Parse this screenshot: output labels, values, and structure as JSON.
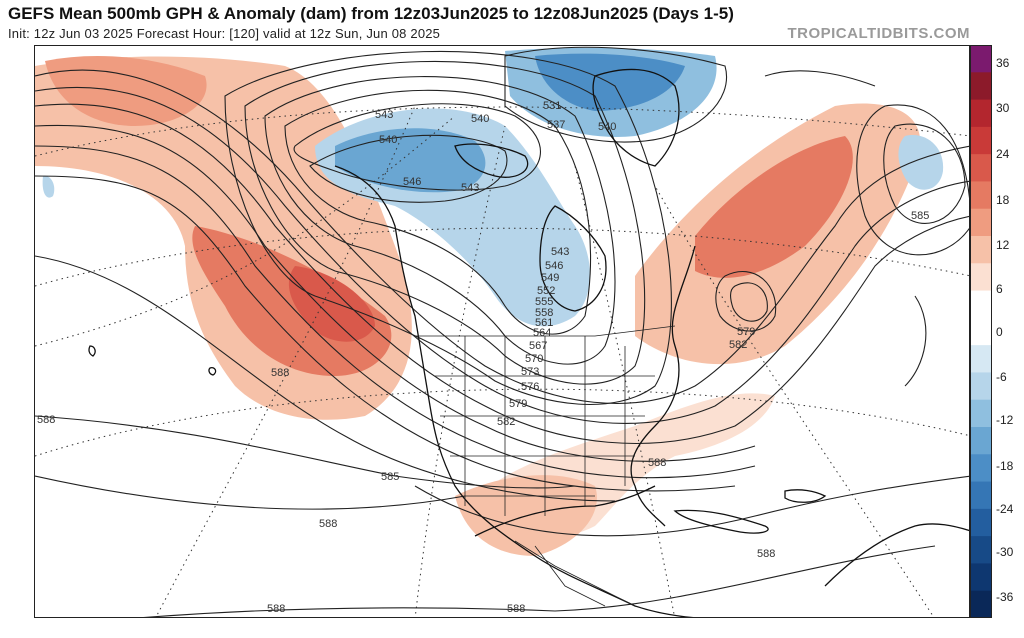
{
  "header": {
    "title": "GEFS Mean 500mb GPH & Anomaly (dam) from 12z03Jun2025 to 12z08Jun2025 (Days 1-5)",
    "subtitle": "Init: 12z Jun 03 2025   Forecast Hour: [120]   valid at 12z Sun, Jun 08 2025",
    "credit": "TROPICALTIDBITS.COM"
  },
  "colorbar": {
    "ticks": [
      "36",
      "30",
      "24",
      "18",
      "12",
      "6",
      "0",
      "-6",
      "-12",
      "-18",
      "-24",
      "-30",
      "-36"
    ],
    "colors": [
      "#7b1a6e",
      "#8c1a2a",
      "#b3262e",
      "#c93a38",
      "#d9594b",
      "#e57a62",
      "#ef9c80",
      "#f6c1a8",
      "#fbe0d2",
      "#ffffff",
      "#ffffff",
      "#d6e8f3",
      "#b6d5ea",
      "#8fbfdf",
      "#6aa6d2",
      "#4c8ec6",
      "#3576b5",
      "#235e9f",
      "#174a87",
      "#0e3770",
      "#0a2858"
    ]
  },
  "contours": {
    "labels": [
      {
        "text": "543"
      },
      {
        "text": "540"
      },
      {
        "text": "540"
      },
      {
        "text": "531"
      },
      {
        "text": "537"
      },
      {
        "text": "540"
      },
      {
        "text": "546"
      },
      {
        "text": "543"
      },
      {
        "text": "543"
      },
      {
        "text": "546"
      },
      {
        "text": "549"
      },
      {
        "text": "552"
      },
      {
        "text": "555"
      },
      {
        "text": "558"
      },
      {
        "text": "561"
      },
      {
        "text": "564"
      },
      {
        "text": "567"
      },
      {
        "text": "570"
      },
      {
        "text": "573"
      },
      {
        "text": "576"
      },
      {
        "text": "579"
      },
      {
        "text": "582"
      },
      {
        "text": "585"
      },
      {
        "text": "588"
      },
      {
        "text": "588"
      },
      {
        "text": "588"
      },
      {
        "text": "588"
      },
      {
        "text": "588"
      },
      {
        "text": "588"
      },
      {
        "text": "585"
      },
      {
        "text": "579"
      },
      {
        "text": "582"
      },
      {
        "text": "588"
      }
    ]
  }
}
